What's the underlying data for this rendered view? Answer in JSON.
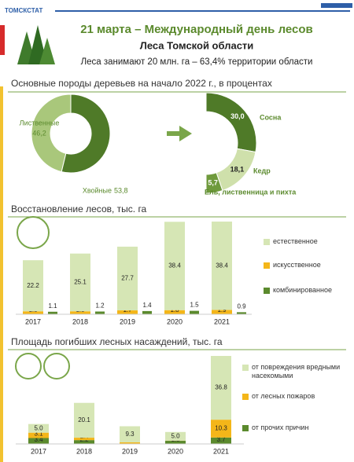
{
  "header": {
    "agency": "ТОМСКСТАТ",
    "title": "21 марта – Международный день лесов",
    "subtitle": "Леса Томской области",
    "note": "Леса занимают 20 млн. га – 63,4% территории области"
  },
  "chart_data": [
    {
      "type": "donut",
      "title": "Основные породы деревьев на начало 2022 г., в процентах",
      "categories": [
        "Лиственные",
        "Хвойные"
      ],
      "values": [
        46.2,
        53.8
      ],
      "value_labels": [
        "46,2",
        "53,8"
      ],
      "colors": [
        "#a9c77b",
        "#4f7a28"
      ],
      "breakdown": {
        "categories": [
          "Сосна",
          "Кедр",
          "Ель, лиственница и пихта"
        ],
        "values": [
          30.0,
          18.1,
          5.7
        ],
        "value_labels": [
          "30,0",
          "18,1",
          "5,7"
        ],
        "colors": [
          "#4f7a28",
          "#cfe0ab",
          "#6f9a3c"
        ]
      }
    },
    {
      "type": "stacked_bar",
      "title": "Восстановление лесов, тыс. га",
      "categories": [
        "2017",
        "2018",
        "2019",
        "2020",
        "2021"
      ],
      "series": [
        {
          "name": "естественное",
          "color": "#d6e6b5",
          "stack": "main",
          "values": [
            22.2,
            25.1,
            27.7,
            38.4,
            38.4
          ]
        },
        {
          "name": "искусственное",
          "color": "#f4b619",
          "stack": "main",
          "values": [
            1.3,
            1.3,
            1.7,
            1.8,
            1.9
          ]
        },
        {
          "name": "комбинированное",
          "color": "#5b8a2d",
          "stack": "side",
          "values": [
            1.1,
            1.2,
            1.4,
            1.5,
            0.9
          ]
        }
      ]
    },
    {
      "type": "stacked_bar",
      "title": "Площадь погибших лесных насаждений, тыс. га",
      "categories": [
        "2017",
        "2018",
        "2019",
        "2020",
        "2021"
      ],
      "series": [
        {
          "name": "от повреждения вредными насекомыми",
          "color": "#d6e6b5",
          "stack": "main",
          "values": [
            5.0,
            20.1,
            9.3,
            5.0,
            36.8
          ],
          "value_labels": [
            "5.0",
            "20.1",
            "9.3",
            "5.0",
            "36.8"
          ]
        },
        {
          "name": "от лесных пожаров",
          "color": "#f4b619",
          "stack": "main",
          "values": [
            3.1,
            1.4,
            0.8,
            0.1,
            10.3
          ]
        },
        {
          "name": "от прочих причин",
          "color": "#5b8a2d",
          "stack": "main",
          "values": [
            3.4,
            2.2,
            0.1,
            1.8,
            3.7
          ]
        }
      ]
    }
  ]
}
